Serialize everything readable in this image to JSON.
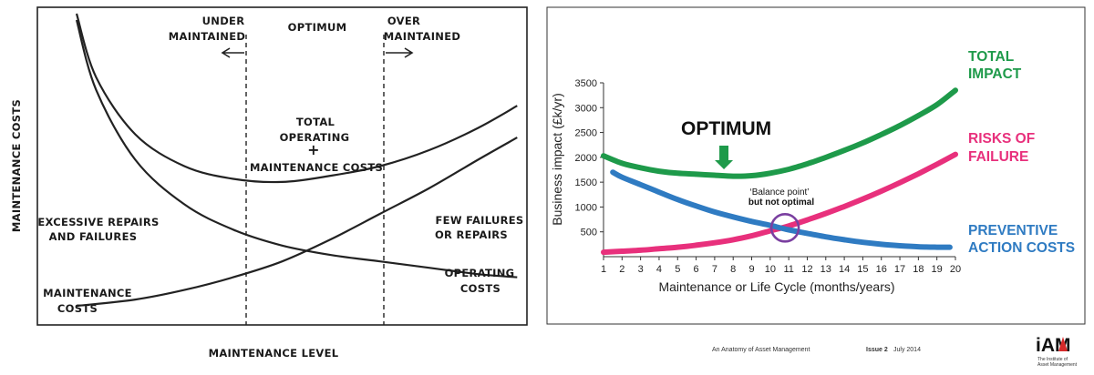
{
  "chart_data": [
    {
      "type": "line",
      "ylabel": "MAINTENANCE COSTS",
      "xlabel": "MAINTENANCE LEVEL",
      "regions": {
        "under": [
          "UNDER",
          "MAINTAINED"
        ],
        "optimum": "OPTIMUM",
        "over": [
          "OVER",
          "MAINTAINED"
        ]
      },
      "annotations": {
        "total": [
          "TOTAL",
          "OPERATING",
          "+",
          "MAINTENANCE COSTS"
        ],
        "excessive": [
          "EXCESSIVE REPAIRS",
          "AND FAILURES"
        ],
        "few": [
          "FEW FAILURES",
          "OR REPAIRS"
        ],
        "operating": [
          "OPERATING",
          "COSTS"
        ],
        "maintenance": [
          "MAINTENANCE",
          "COSTS"
        ]
      },
      "series": [
        {
          "name": "TOTAL OPERATING + MAINTENANCE COSTS",
          "values": [
            [
              0.08,
              0.98
            ],
            [
              0.12,
              0.78
            ],
            [
              0.2,
              0.6
            ],
            [
              0.3,
              0.5
            ],
            [
              0.4,
              0.46
            ],
            [
              0.5,
              0.45
            ],
            [
              0.6,
              0.47
            ],
            [
              0.7,
              0.5
            ],
            [
              0.8,
              0.55
            ],
            [
              0.9,
              0.62
            ],
            [
              0.98,
              0.69
            ]
          ]
        },
        {
          "name": "OPERATING COSTS",
          "values": [
            [
              0.08,
              0.96
            ],
            [
              0.12,
              0.74
            ],
            [
              0.2,
              0.52
            ],
            [
              0.3,
              0.38
            ],
            [
              0.4,
              0.3
            ],
            [
              0.5,
              0.25
            ],
            [
              0.6,
              0.22
            ],
            [
              0.7,
              0.2
            ],
            [
              0.8,
              0.18
            ],
            [
              0.9,
              0.16
            ],
            [
              0.98,
              0.15
            ]
          ]
        },
        {
          "name": "MAINTENANCE COSTS",
          "values": [
            [
              0.08,
              0.06
            ],
            [
              0.2,
              0.08
            ],
            [
              0.3,
              0.11
            ],
            [
              0.4,
              0.15
            ],
            [
              0.5,
              0.2
            ],
            [
              0.6,
              0.27
            ],
            [
              0.7,
              0.35
            ],
            [
              0.8,
              0.43
            ],
            [
              0.9,
              0.52
            ],
            [
              0.98,
              0.59
            ]
          ]
        }
      ],
      "dividers": [
        0.25,
        0.65
      ]
    },
    {
      "type": "line",
      "xlabel": "Maintenance or Life Cycle (months/years)",
      "ylabel": "Business impact (£k/yr)",
      "xlim": [
        1,
        20
      ],
      "ylim": [
        0,
        3500
      ],
      "xticks": [
        1,
        2,
        3,
        4,
        5,
        6,
        7,
        8,
        9,
        10,
        11,
        12,
        13,
        14,
        15,
        16,
        17,
        18,
        19,
        20
      ],
      "yticks": [
        500,
        1000,
        1500,
        2000,
        2500,
        3000,
        3500
      ],
      "series": [
        {
          "name": "TOTAL IMPACT",
          "label": [
            "TOTAL",
            "IMPACT"
          ],
          "color": "#1e9a4a",
          "x": [
            1,
            2,
            3,
            4,
            5,
            6,
            7,
            8,
            9,
            10,
            11,
            12,
            13,
            14,
            15,
            16,
            17,
            18,
            19,
            20
          ],
          "values": [
            2030,
            1880,
            1790,
            1720,
            1680,
            1660,
            1640,
            1620,
            1630,
            1680,
            1760,
            1870,
            2000,
            2140,
            2290,
            2460,
            2640,
            2840,
            3060,
            3350
          ]
        },
        {
          "name": "RISKS OF FAILURE",
          "label": [
            "RISKS OF",
            "FAILURE"
          ],
          "color": "#e8307c",
          "x": [
            1,
            2,
            3,
            4,
            5,
            6,
            7,
            8,
            9,
            10,
            11,
            12,
            13,
            14,
            15,
            16,
            17,
            18,
            19,
            20
          ],
          "values": [
            90,
            110,
            130,
            160,
            190,
            230,
            280,
            340,
            420,
            520,
            620,
            740,
            870,
            1010,
            1160,
            1320,
            1490,
            1670,
            1860,
            2060
          ]
        },
        {
          "name": "PREVENTIVE ACTION COSTS",
          "label": [
            "PREVENTIVE",
            "ACTION COSTS"
          ],
          "color": "#2f7bc2",
          "x": [
            1.5,
            2,
            3,
            4,
            5,
            6,
            7,
            8,
            9,
            10,
            11,
            12,
            13,
            14,
            15,
            16,
            17,
            18,
            19,
            19.7
          ],
          "values": [
            1700,
            1600,
            1450,
            1300,
            1150,
            1020,
            900,
            800,
            710,
            630,
            540,
            470,
            400,
            340,
            290,
            250,
            220,
            200,
            190,
            190
          ]
        }
      ],
      "annotations": {
        "optimum": "OPTIMUM",
        "balance": [
          "‘Balance point’",
          "but not optimal"
        ]
      },
      "balance_point": {
        "x": 10.8,
        "y": 580
      },
      "optimum_x": 7.5
    }
  ],
  "footer": {
    "publication": "An Anatomy of Asset Management",
    "issue": "Issue 2",
    "date": "July 2014",
    "logo_text": "iAM",
    "logo_subtitle": [
      "The Institute of",
      "Asset Management"
    ]
  }
}
